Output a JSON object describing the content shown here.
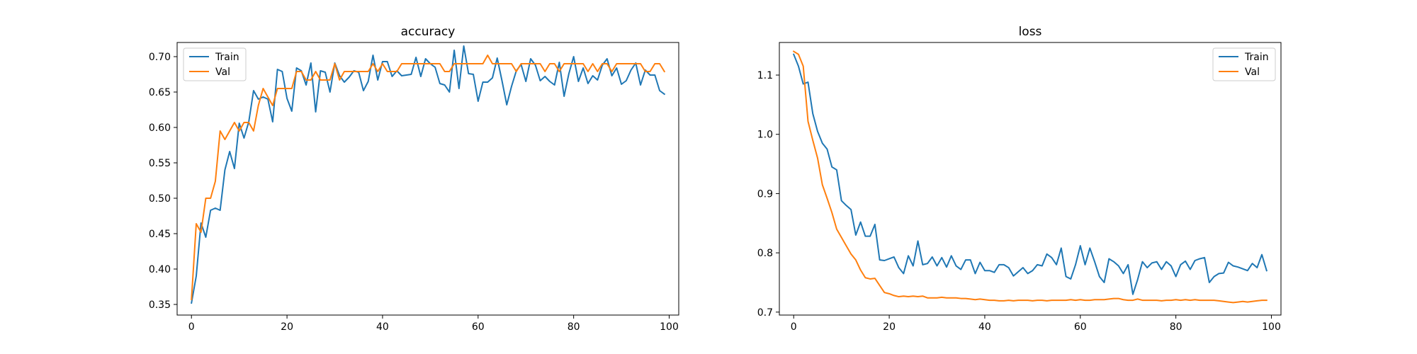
{
  "chart_data": [
    {
      "type": "line",
      "title": "accuracy",
      "xlabel": "",
      "ylabel": "",
      "xlim": [
        -3,
        102
      ],
      "ylim": [
        0.335,
        0.72
      ],
      "xticks": [
        0,
        20,
        40,
        60,
        80,
        100
      ],
      "yticks": [
        0.35,
        0.4,
        0.45,
        0.5,
        0.55,
        0.6,
        0.65,
        0.7
      ],
      "xtick_labels": [
        "0",
        "20",
        "40",
        "60",
        "80",
        "100"
      ],
      "ytick_labels": [
        "0.35",
        "0.40",
        "0.45",
        "0.50",
        "0.55",
        "0.60",
        "0.65",
        "0.70"
      ],
      "legend": "top-left",
      "grid": false,
      "series": [
        {
          "name": "Train",
          "color": "#1f77b4",
          "values": [
            0.352,
            0.39,
            0.465,
            0.445,
            0.483,
            0.486,
            0.483,
            0.54,
            0.566,
            0.542,
            0.606,
            0.585,
            0.608,
            0.652,
            0.64,
            0.643,
            0.64,
            0.608,
            0.682,
            0.679,
            0.641,
            0.623,
            0.684,
            0.68,
            0.66,
            0.691,
            0.622,
            0.68,
            0.678,
            0.65,
            0.691,
            0.673,
            0.664,
            0.671,
            0.68,
            0.678,
            0.652,
            0.665,
            0.702,
            0.667,
            0.693,
            0.693,
            0.672,
            0.68,
            0.673,
            0.674,
            0.675,
            0.699,
            0.672,
            0.697,
            0.69,
            0.685,
            0.662,
            0.66,
            0.65,
            0.709,
            0.655,
            0.715,
            0.676,
            0.675,
            0.637,
            0.664,
            0.664,
            0.67,
            0.698,
            0.666,
            0.632,
            0.658,
            0.68,
            0.689,
            0.665,
            0.697,
            0.688,
            0.666,
            0.672,
            0.665,
            0.66,
            0.692,
            0.644,
            0.676,
            0.7,
            0.665,
            0.684,
            0.662,
            0.673,
            0.667,
            0.688,
            0.697,
            0.673,
            0.684,
            0.661,
            0.666,
            0.681,
            0.691,
            0.66,
            0.681,
            0.674,
            0.674,
            0.652,
            0.647
          ]
        },
        {
          "name": "Val",
          "color": "#ff7f0e",
          "values": [
            0.357,
            0.464,
            0.452,
            0.5,
            0.5,
            0.524,
            0.595,
            0.583,
            0.595,
            0.607,
            0.595,
            0.607,
            0.607,
            0.595,
            0.631,
            0.655,
            0.643,
            0.631,
            0.655,
            0.655,
            0.655,
            0.655,
            0.679,
            0.679,
            0.667,
            0.667,
            0.679,
            0.667,
            0.667,
            0.667,
            0.69,
            0.667,
            0.679,
            0.679,
            0.679,
            0.679,
            0.679,
            0.679,
            0.69,
            0.679,
            0.69,
            0.679,
            0.679,
            0.679,
            0.69,
            0.69,
            0.69,
            0.69,
            0.69,
            0.69,
            0.69,
            0.69,
            0.69,
            0.679,
            0.679,
            0.69,
            0.69,
            0.69,
            0.69,
            0.69,
            0.69,
            0.69,
            0.702,
            0.69,
            0.69,
            0.69,
            0.69,
            0.69,
            0.679,
            0.69,
            0.69,
            0.69,
            0.69,
            0.69,
            0.679,
            0.69,
            0.69,
            0.679,
            0.69,
            0.69,
            0.69,
            0.69,
            0.69,
            0.679,
            0.69,
            0.679,
            0.69,
            0.69,
            0.679,
            0.69,
            0.69,
            0.69,
            0.69,
            0.69,
            0.69,
            0.679,
            0.679,
            0.69,
            0.69,
            0.679
          ]
        }
      ]
    },
    {
      "type": "line",
      "title": "loss",
      "xlabel": "",
      "ylabel": "",
      "xlim": [
        -3,
        102
      ],
      "ylim": [
        0.695,
        1.155
      ],
      "xticks": [
        0,
        20,
        40,
        60,
        80,
        100
      ],
      "yticks": [
        0.7,
        0.8,
        0.9,
        1.0,
        1.1
      ],
      "xtick_labels": [
        "0",
        "20",
        "40",
        "60",
        "80",
        "100"
      ],
      "ytick_labels": [
        "0.7",
        "0.8",
        "0.9",
        "1.0",
        "1.1"
      ],
      "legend": "top-right",
      "grid": false,
      "series": [
        {
          "name": "Train",
          "color": "#1f77b4",
          "values": [
            1.135,
            1.115,
            1.085,
            1.088,
            1.035,
            1.005,
            0.985,
            0.975,
            0.945,
            0.94,
            0.888,
            0.88,
            0.873,
            0.83,
            0.852,
            0.828,
            0.828,
            0.848,
            0.788,
            0.787,
            0.79,
            0.793,
            0.775,
            0.765,
            0.795,
            0.778,
            0.82,
            0.78,
            0.782,
            0.793,
            0.778,
            0.792,
            0.776,
            0.795,
            0.778,
            0.772,
            0.788,
            0.788,
            0.765,
            0.784,
            0.77,
            0.77,
            0.767,
            0.78,
            0.78,
            0.775,
            0.761,
            0.768,
            0.775,
            0.765,
            0.77,
            0.78,
            0.778,
            0.798,
            0.792,
            0.78,
            0.808,
            0.76,
            0.756,
            0.78,
            0.812,
            0.78,
            0.808,
            0.785,
            0.76,
            0.75,
            0.79,
            0.785,
            0.778,
            0.765,
            0.78,
            0.73,
            0.755,
            0.785,
            0.775,
            0.783,
            0.785,
            0.772,
            0.785,
            0.778,
            0.76,
            0.78,
            0.786,
            0.772,
            0.787,
            0.79,
            0.792,
            0.75,
            0.76,
            0.765,
            0.766,
            0.784,
            0.778,
            0.776,
            0.773,
            0.77,
            0.782,
            0.775,
            0.797,
            0.77
          ]
        },
        {
          "name": "Val",
          "color": "#ff7f0e",
          "values": [
            1.14,
            1.135,
            1.115,
            1.022,
            0.99,
            0.96,
            0.915,
            0.892,
            0.868,
            0.84,
            0.826,
            0.812,
            0.798,
            0.788,
            0.771,
            0.758,
            0.756,
            0.757,
            0.745,
            0.733,
            0.731,
            0.728,
            0.726,
            0.727,
            0.726,
            0.727,
            0.726,
            0.727,
            0.724,
            0.724,
            0.724,
            0.725,
            0.724,
            0.724,
            0.724,
            0.723,
            0.723,
            0.722,
            0.721,
            0.722,
            0.721,
            0.72,
            0.72,
            0.719,
            0.719,
            0.72,
            0.719,
            0.72,
            0.72,
            0.72,
            0.719,
            0.72,
            0.72,
            0.719,
            0.72,
            0.72,
            0.72,
            0.72,
            0.721,
            0.72,
            0.721,
            0.72,
            0.72,
            0.721,
            0.721,
            0.721,
            0.722,
            0.723,
            0.723,
            0.721,
            0.72,
            0.72,
            0.722,
            0.72,
            0.72,
            0.72,
            0.72,
            0.719,
            0.72,
            0.72,
            0.721,
            0.72,
            0.721,
            0.72,
            0.721,
            0.72,
            0.72,
            0.72,
            0.72,
            0.719,
            0.718,
            0.717,
            0.716,
            0.717,
            0.718,
            0.717,
            0.718,
            0.719,
            0.72,
            0.72
          ]
        }
      ]
    }
  ]
}
